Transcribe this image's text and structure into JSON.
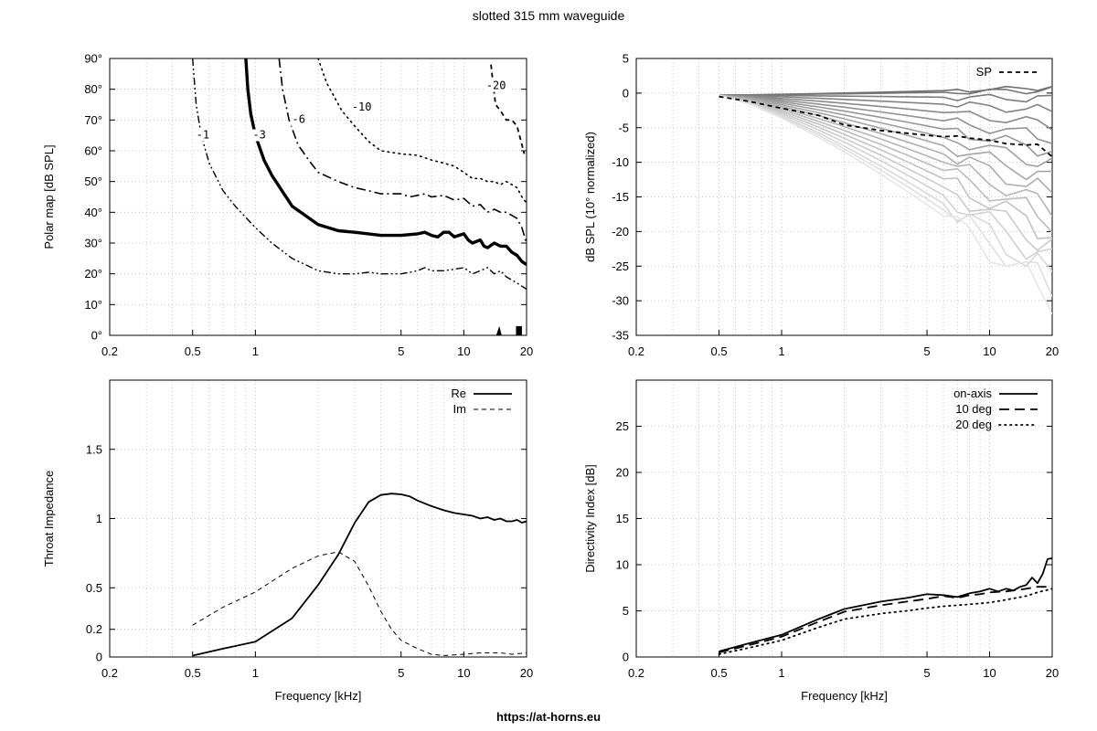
{
  "page": {
    "title": "slotted 315 mm waveguide",
    "footer": "https://at-horns.eu"
  },
  "chart_data": [
    {
      "id": "polar_map",
      "type": "contour",
      "ylabel": "Polar map [dB SPL]",
      "xlabel": "",
      "xscale": "log",
      "xlim": [
        0.2,
        20
      ],
      "ylim": [
        0,
        90
      ],
      "xticks": [
        "0.2",
        "0.5",
        "1",
        "5",
        "10",
        "20"
      ],
      "xtick_values": [
        0.2,
        0.5,
        1,
        5,
        10,
        20
      ],
      "yticks": [
        "0°",
        "10°",
        "20°",
        "30°",
        "40°",
        "50°",
        "60°",
        "70°",
        "80°",
        "90°"
      ],
      "ytick_values": [
        0,
        10,
        20,
        30,
        40,
        50,
        60,
        70,
        80,
        90
      ],
      "grid": true,
      "series": [
        {
          "name": "-1",
          "style": "dashdotdot",
          "width": 1.4,
          "points": [
            [
              0.5,
              90
            ],
            [
              0.52,
              75
            ],
            [
              0.55,
              65
            ],
            [
              0.6,
              56
            ],
            [
              0.7,
              47
            ],
            [
              0.8,
              42
            ],
            [
              1.0,
              35
            ],
            [
              1.2,
              30
            ],
            [
              1.5,
              25
            ],
            [
              2.0,
              21
            ],
            [
              2.5,
              20
            ],
            [
              3,
              20
            ],
            [
              3.5,
              20.5
            ],
            [
              4,
              20
            ],
            [
              5,
              20
            ],
            [
              5.5,
              20.5
            ],
            [
              6,
              21
            ],
            [
              6.5,
              22
            ],
            [
              7,
              21
            ],
            [
              8,
              21
            ],
            [
              9,
              21.5
            ],
            [
              10,
              22
            ],
            [
              11,
              20
            ],
            [
              12,
              21
            ],
            [
              13,
              22
            ],
            [
              14,
              20
            ],
            [
              15,
              21
            ],
            [
              16,
              19
            ],
            [
              17,
              18
            ],
            [
              18,
              17
            ],
            [
              20,
              15
            ]
          ]
        },
        {
          "name": "-3",
          "style": "solid",
          "width": 3.4,
          "points": [
            [
              0.9,
              90
            ],
            [
              0.92,
              80
            ],
            [
              0.95,
              72
            ],
            [
              1.0,
              65
            ],
            [
              1.1,
              57
            ],
            [
              1.2,
              52
            ],
            [
              1.5,
              42
            ],
            [
              2.0,
              36
            ],
            [
              2.5,
              34
            ],
            [
              3,
              33.5
            ],
            [
              4,
              32.5
            ],
            [
              5,
              32.5
            ],
            [
              6,
              33
            ],
            [
              6.5,
              33.5
            ],
            [
              7,
              32.5
            ],
            [
              7.5,
              32
            ],
            [
              8,
              33.5
            ],
            [
              8.5,
              33.5
            ],
            [
              9,
              32
            ],
            [
              10,
              33
            ],
            [
              10.5,
              31
            ],
            [
              11,
              30
            ],
            [
              12,
              31
            ],
            [
              12.5,
              29
            ],
            [
              13,
              28.5
            ],
            [
              14,
              30
            ],
            [
              15,
              29
            ],
            [
              16,
              29
            ],
            [
              17,
              27
            ],
            [
              18,
              26
            ],
            [
              19,
              24
            ],
            [
              20,
              23
            ]
          ]
        },
        {
          "name": "-6",
          "style": "dashdot",
          "width": 1.6,
          "points": [
            [
              1.3,
              90
            ],
            [
              1.35,
              80
            ],
            [
              1.45,
              70
            ],
            [
              1.6,
              62
            ],
            [
              1.8,
              57
            ],
            [
              2.0,
              53
            ],
            [
              2.5,
              50
            ],
            [
              3,
              48
            ],
            [
              3.5,
              47
            ],
            [
              4,
              46
            ],
            [
              5,
              46
            ],
            [
              5.5,
              45
            ],
            [
              6,
              45.5
            ],
            [
              6.5,
              46
            ],
            [
              7,
              45
            ],
            [
              8,
              45.5
            ],
            [
              9,
              44
            ],
            [
              10,
              44.5
            ],
            [
              11,
              42
            ],
            [
              12,
              42.5
            ],
            [
              13,
              40
            ],
            [
              14,
              41
            ],
            [
              15,
              40
            ],
            [
              16,
              40
            ],
            [
              17,
              39
            ],
            [
              18,
              38
            ],
            [
              19,
              35
            ],
            [
              20,
              30
            ]
          ]
        },
        {
          "name": "-10",
          "style": "dotted",
          "width": 1.6,
          "points": [
            [
              2.0,
              90
            ],
            [
              2.2,
              82
            ],
            [
              2.6,
              73
            ],
            [
              3,
              68
            ],
            [
              3.5,
              63
            ],
            [
              4,
              60
            ],
            [
              5,
              59
            ],
            [
              6,
              58.5
            ],
            [
              7,
              57
            ],
            [
              8,
              56
            ],
            [
              9,
              55
            ],
            [
              10,
              53
            ],
            [
              11,
              51
            ],
            [
              12,
              51
            ],
            [
              13,
              50
            ],
            [
              14,
              50
            ],
            [
              15,
              49
            ],
            [
              16,
              50
            ],
            [
              17,
              49
            ],
            [
              18,
              48
            ],
            [
              19,
              45
            ],
            [
              20,
              43
            ]
          ]
        },
        {
          "name": "-20",
          "style": "dashed",
          "width": 1.8,
          "points": [
            [
              13.5,
              88
            ],
            [
              13.8,
              82
            ],
            [
              14.2,
              75
            ],
            [
              15,
              73
            ],
            [
              16,
              70
            ],
            [
              17,
              70
            ],
            [
              18,
              68
            ],
            [
              19,
              62
            ],
            [
              19.5,
              59
            ]
          ]
        }
      ],
      "label_positions": [
        {
          "text": "-1",
          "x": 0.52,
          "y": 64
        },
        {
          "text": "-3",
          "x": 0.97,
          "y": 64
        },
        {
          "text": "-6",
          "x": 1.5,
          "y": 69
        },
        {
          "text": "-10",
          "x": 2.9,
          "y": 73
        },
        {
          "text": "-20",
          "x": 12.8,
          "y": 80
        }
      ]
    },
    {
      "id": "normalized_spl",
      "type": "line",
      "ylabel": "dB SPL (10° normalized)",
      "xlabel": "",
      "xscale": "log",
      "xlim": [
        0.2,
        20
      ],
      "ylim": [
        -35,
        5
      ],
      "xticks": [
        "0.2",
        "0.5",
        "1",
        "5",
        "10",
        "20"
      ],
      "xtick_values": [
        0.2,
        0.5,
        1,
        5,
        10,
        20
      ],
      "yticks": [
        "5",
        "0",
        "-5",
        "-10",
        "-15",
        "-20",
        "-25",
        "-30",
        "-35"
      ],
      "ytick_values": [
        5,
        0,
        -5,
        -10,
        -15,
        -20,
        -25,
        -30,
        -35
      ],
      "grid": true,
      "legend": {
        "position": "top-right",
        "entries": [
          "SP"
        ]
      },
      "sp_series": {
        "name": "SP",
        "style": "dashed",
        "x": [
          0.5,
          0.7,
          1,
          1.5,
          2,
          3,
          4,
          5,
          6,
          7,
          8,
          10,
          12,
          15,
          17,
          20
        ],
        "y": [
          -0.5,
          -1.2,
          -2.2,
          -3.2,
          -4.6,
          -5.4,
          -5.8,
          -6.1,
          -6.3,
          -6.2,
          -6.5,
          -6.8,
          -7.3,
          -7.5,
          -7.4,
          -9.2
        ]
      },
      "angle_series_count": 18,
      "angle_series_x": [
        0.5,
        0.7,
        1,
        1.5,
        2,
        3,
        4,
        5,
        6,
        7,
        8,
        10,
        12,
        15,
        17,
        20
      ],
      "angle_series_end_values": [
        0.8,
        0.4,
        -0.8,
        -2.5,
        -4.5,
        -6.5,
        -8.5,
        -10.5,
        -12.5,
        -14.5,
        -16.5,
        -18.5,
        -20.5,
        -22.5,
        -24.5,
        -26.5,
        -28,
        -29.5
      ]
    },
    {
      "id": "throat_impedance",
      "type": "line",
      "ylabel": "Throat Impedance",
      "xlabel": "Frequency [kHz]",
      "xscale": "log",
      "xlim": [
        0.2,
        20
      ],
      "ylim": [
        0,
        2
      ],
      "xticks": [
        "0.2",
        "0.5",
        "1",
        "5",
        "10",
        "20"
      ],
      "xtick_values": [
        0.2,
        0.5,
        1,
        5,
        10,
        20
      ],
      "yticks": [
        "0",
        "0.2",
        "0.5",
        "1",
        "1.5"
      ],
      "ytick_values": [
        0,
        0.2,
        0.5,
        1,
        1.5
      ],
      "grid": true,
      "legend": {
        "position": "top-right",
        "entries": [
          "Re",
          "Im"
        ]
      },
      "series": [
        {
          "name": "Re",
          "style": "solid",
          "width": 1.8,
          "x": [
            0.5,
            0.7,
            1,
            1.5,
            2,
            2.5,
            3,
            3.5,
            4,
            4.5,
            5,
            5.5,
            6,
            7,
            8,
            9,
            10,
            11,
            12,
            13,
            14,
            15,
            16,
            17,
            18,
            19,
            20
          ],
          "y": [
            0.01,
            0.06,
            0.11,
            0.28,
            0.52,
            0.74,
            0.97,
            1.12,
            1.17,
            1.18,
            1.175,
            1.16,
            1.13,
            1.09,
            1.06,
            1.04,
            1.03,
            1.02,
            1.0,
            1.01,
            0.99,
            1.0,
            0.98,
            0.98,
            0.99,
            0.97,
            0.98
          ]
        },
        {
          "name": "Im",
          "style": "dashed",
          "width": 1.0,
          "x": [
            0.5,
            0.7,
            1,
            1.5,
            2,
            2.5,
            3,
            3.5,
            4,
            4.5,
            5,
            6,
            7,
            8,
            10,
            12,
            15,
            17,
            20
          ],
          "y": [
            0.23,
            0.36,
            0.47,
            0.64,
            0.73,
            0.76,
            0.69,
            0.51,
            0.33,
            0.2,
            0.12,
            0.06,
            0.02,
            0.01,
            0.02,
            0.03,
            0.03,
            0.02,
            0.03
          ]
        }
      ]
    },
    {
      "id": "directivity_index",
      "type": "line",
      "ylabel": "Directivity Index [dB]",
      "xlabel": "Frequency [kHz]",
      "xscale": "log",
      "xlim": [
        0.2,
        20
      ],
      "ylim": [
        0,
        30
      ],
      "xticks": [
        "0.2",
        "0.5",
        "1",
        "5",
        "10",
        "20"
      ],
      "xtick_values": [
        0.2,
        0.5,
        1,
        5,
        10,
        20
      ],
      "yticks": [
        "0",
        "5",
        "10",
        "15",
        "20",
        "25"
      ],
      "ytick_values": [
        0,
        5,
        10,
        15,
        20,
        25
      ],
      "grid": true,
      "legend": {
        "position": "top-right",
        "entries": [
          "on-axis",
          "10 deg",
          "20 deg"
        ]
      },
      "series": [
        {
          "name": "on-axis",
          "style": "solid",
          "width": 1.8,
          "x": [
            0.5,
            0.7,
            1,
            1.5,
            2,
            3,
            4,
            5,
            6,
            7,
            8,
            9,
            10,
            11,
            12,
            13,
            14,
            15,
            16,
            17,
            18,
            19,
            20
          ],
          "y": [
            0.6,
            1.5,
            2.4,
            4.1,
            5.2,
            6.0,
            6.4,
            6.8,
            6.7,
            6.5,
            6.9,
            7.1,
            7.4,
            7.1,
            7.4,
            7.2,
            7.6,
            7.8,
            8.6,
            8.0,
            9.0,
            10.6,
            10.7
          ]
        },
        {
          "name": "10 deg",
          "style": "longdash",
          "width": 1.8,
          "x": [
            0.5,
            0.7,
            1,
            1.5,
            2,
            3,
            4,
            5,
            6,
            7,
            8,
            9,
            10,
            12,
            15,
            17,
            20
          ],
          "y": [
            0.5,
            1.3,
            2.2,
            3.8,
            4.9,
            5.6,
            6.0,
            6.3,
            6.6,
            6.4,
            6.7,
            6.8,
            7.0,
            7.1,
            7.4,
            7.6,
            7.6
          ]
        },
        {
          "name": "20 deg",
          "style": "dotted",
          "width": 1.8,
          "x": [
            0.5,
            0.7,
            1,
            1.5,
            2,
            3,
            4,
            5,
            6,
            7,
            8,
            10,
            12,
            15,
            17,
            20
          ],
          "y": [
            0.3,
            1.0,
            1.8,
            3.2,
            4.1,
            4.7,
            5.0,
            5.3,
            5.5,
            5.6,
            5.7,
            5.9,
            6.2,
            6.6,
            7.0,
            7.4
          ]
        }
      ]
    }
  ]
}
